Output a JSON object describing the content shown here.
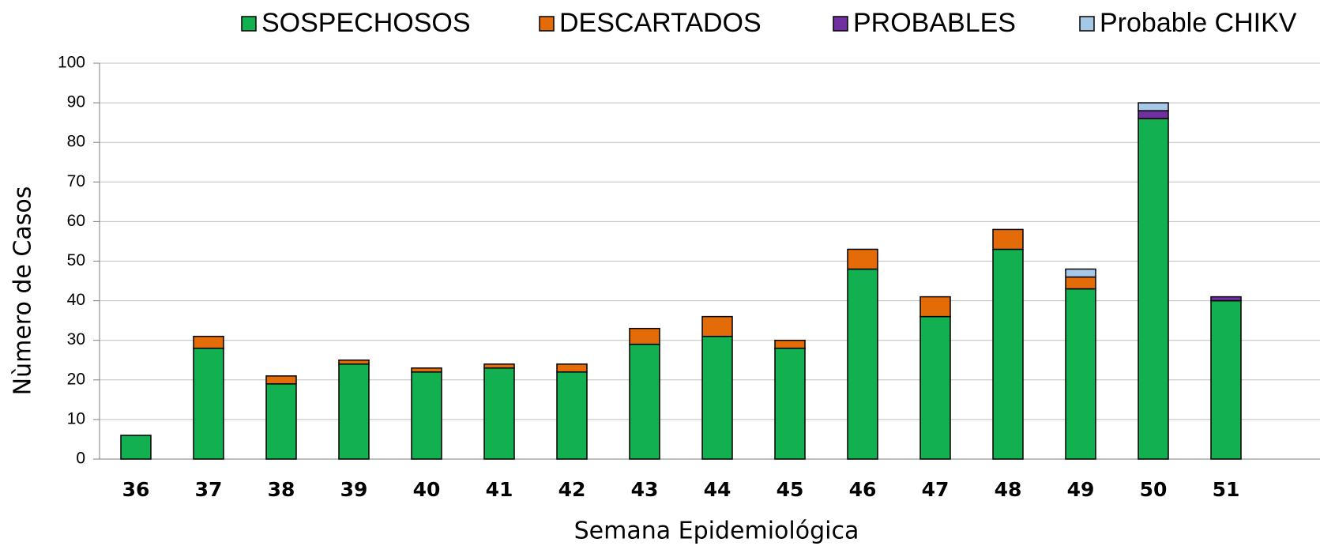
{
  "chart_data": {
    "type": "stacked-bar",
    "x_label": "Semana Epidemiológica",
    "y_label": "Nùmero de Casos",
    "categories": [
      "36",
      "37",
      "38",
      "39",
      "40",
      "41",
      "42",
      "43",
      "44",
      "45",
      "46",
      "47",
      "48",
      "49",
      "50",
      "51"
    ],
    "series": [
      {
        "name": "SOSPECHOSOS",
        "color": "#12b050",
        "values": [
          6,
          28,
          19,
          24,
          22,
          23,
          22,
          29,
          31,
          28,
          48,
          36,
          53,
          43,
          86,
          40
        ]
      },
      {
        "name": "DESCARTADOS",
        "color": "#e36c09",
        "values": [
          0,
          3,
          2,
          1,
          1,
          1,
          2,
          4,
          5,
          2,
          5,
          5,
          5,
          3,
          0,
          0
        ]
      },
      {
        "name": "PROBABLES",
        "color": "#7030a0",
        "values": [
          0,
          0,
          0,
          0,
          0,
          0,
          0,
          0,
          0,
          0,
          0,
          0,
          0,
          0,
          2,
          1
        ]
      },
      {
        "name": "Probable CHIKV",
        "color": "#a6c8e6",
        "values": [
          0,
          0,
          0,
          0,
          0,
          0,
          0,
          0,
          0,
          0,
          0,
          0,
          0,
          2,
          2,
          0
        ]
      }
    ],
    "ylim": [
      0,
      100
    ],
    "yticks": [
      0,
      10,
      20,
      30,
      40,
      50,
      60,
      70,
      80,
      90,
      100
    ],
    "grid": true
  }
}
